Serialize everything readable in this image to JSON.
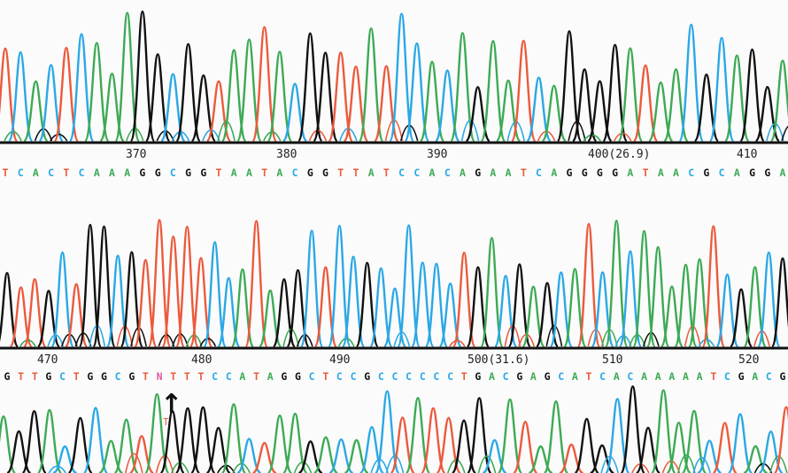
{
  "colors": {
    "A": "#3daa55",
    "C": "#2aa8e6",
    "G": "#111111",
    "T": "#ec5a3c",
    "N": "#e05aa8",
    "axis": "#111111"
  },
  "rows": [
    {
      "positions": [
        {
          "label": "370"
        },
        {
          "label": "380"
        },
        {
          "label": "390"
        },
        {
          "label": "400(26.9)"
        },
        {
          "label": "410"
        }
      ],
      "sequence": "TCACTCAAAGGCGGTAATACGGTTATCCACAGAATCAGGGGATAACGCAGGA"
    },
    {
      "positions": [
        {
          "label": "470"
        },
        {
          "label": "480"
        },
        {
          "label": "490"
        },
        {
          "label": "500(31.6)"
        },
        {
          "label": "510"
        },
        {
          "label": "520"
        }
      ],
      "sequence": "GTTGCTGGCGTNTTTCCATAGGCTCCGCCCCCCTGACGAGCATCACAAAAATCGACG"
    }
  ],
  "annotation": {
    "arrow": "↑",
    "base_call": "T"
  }
}
